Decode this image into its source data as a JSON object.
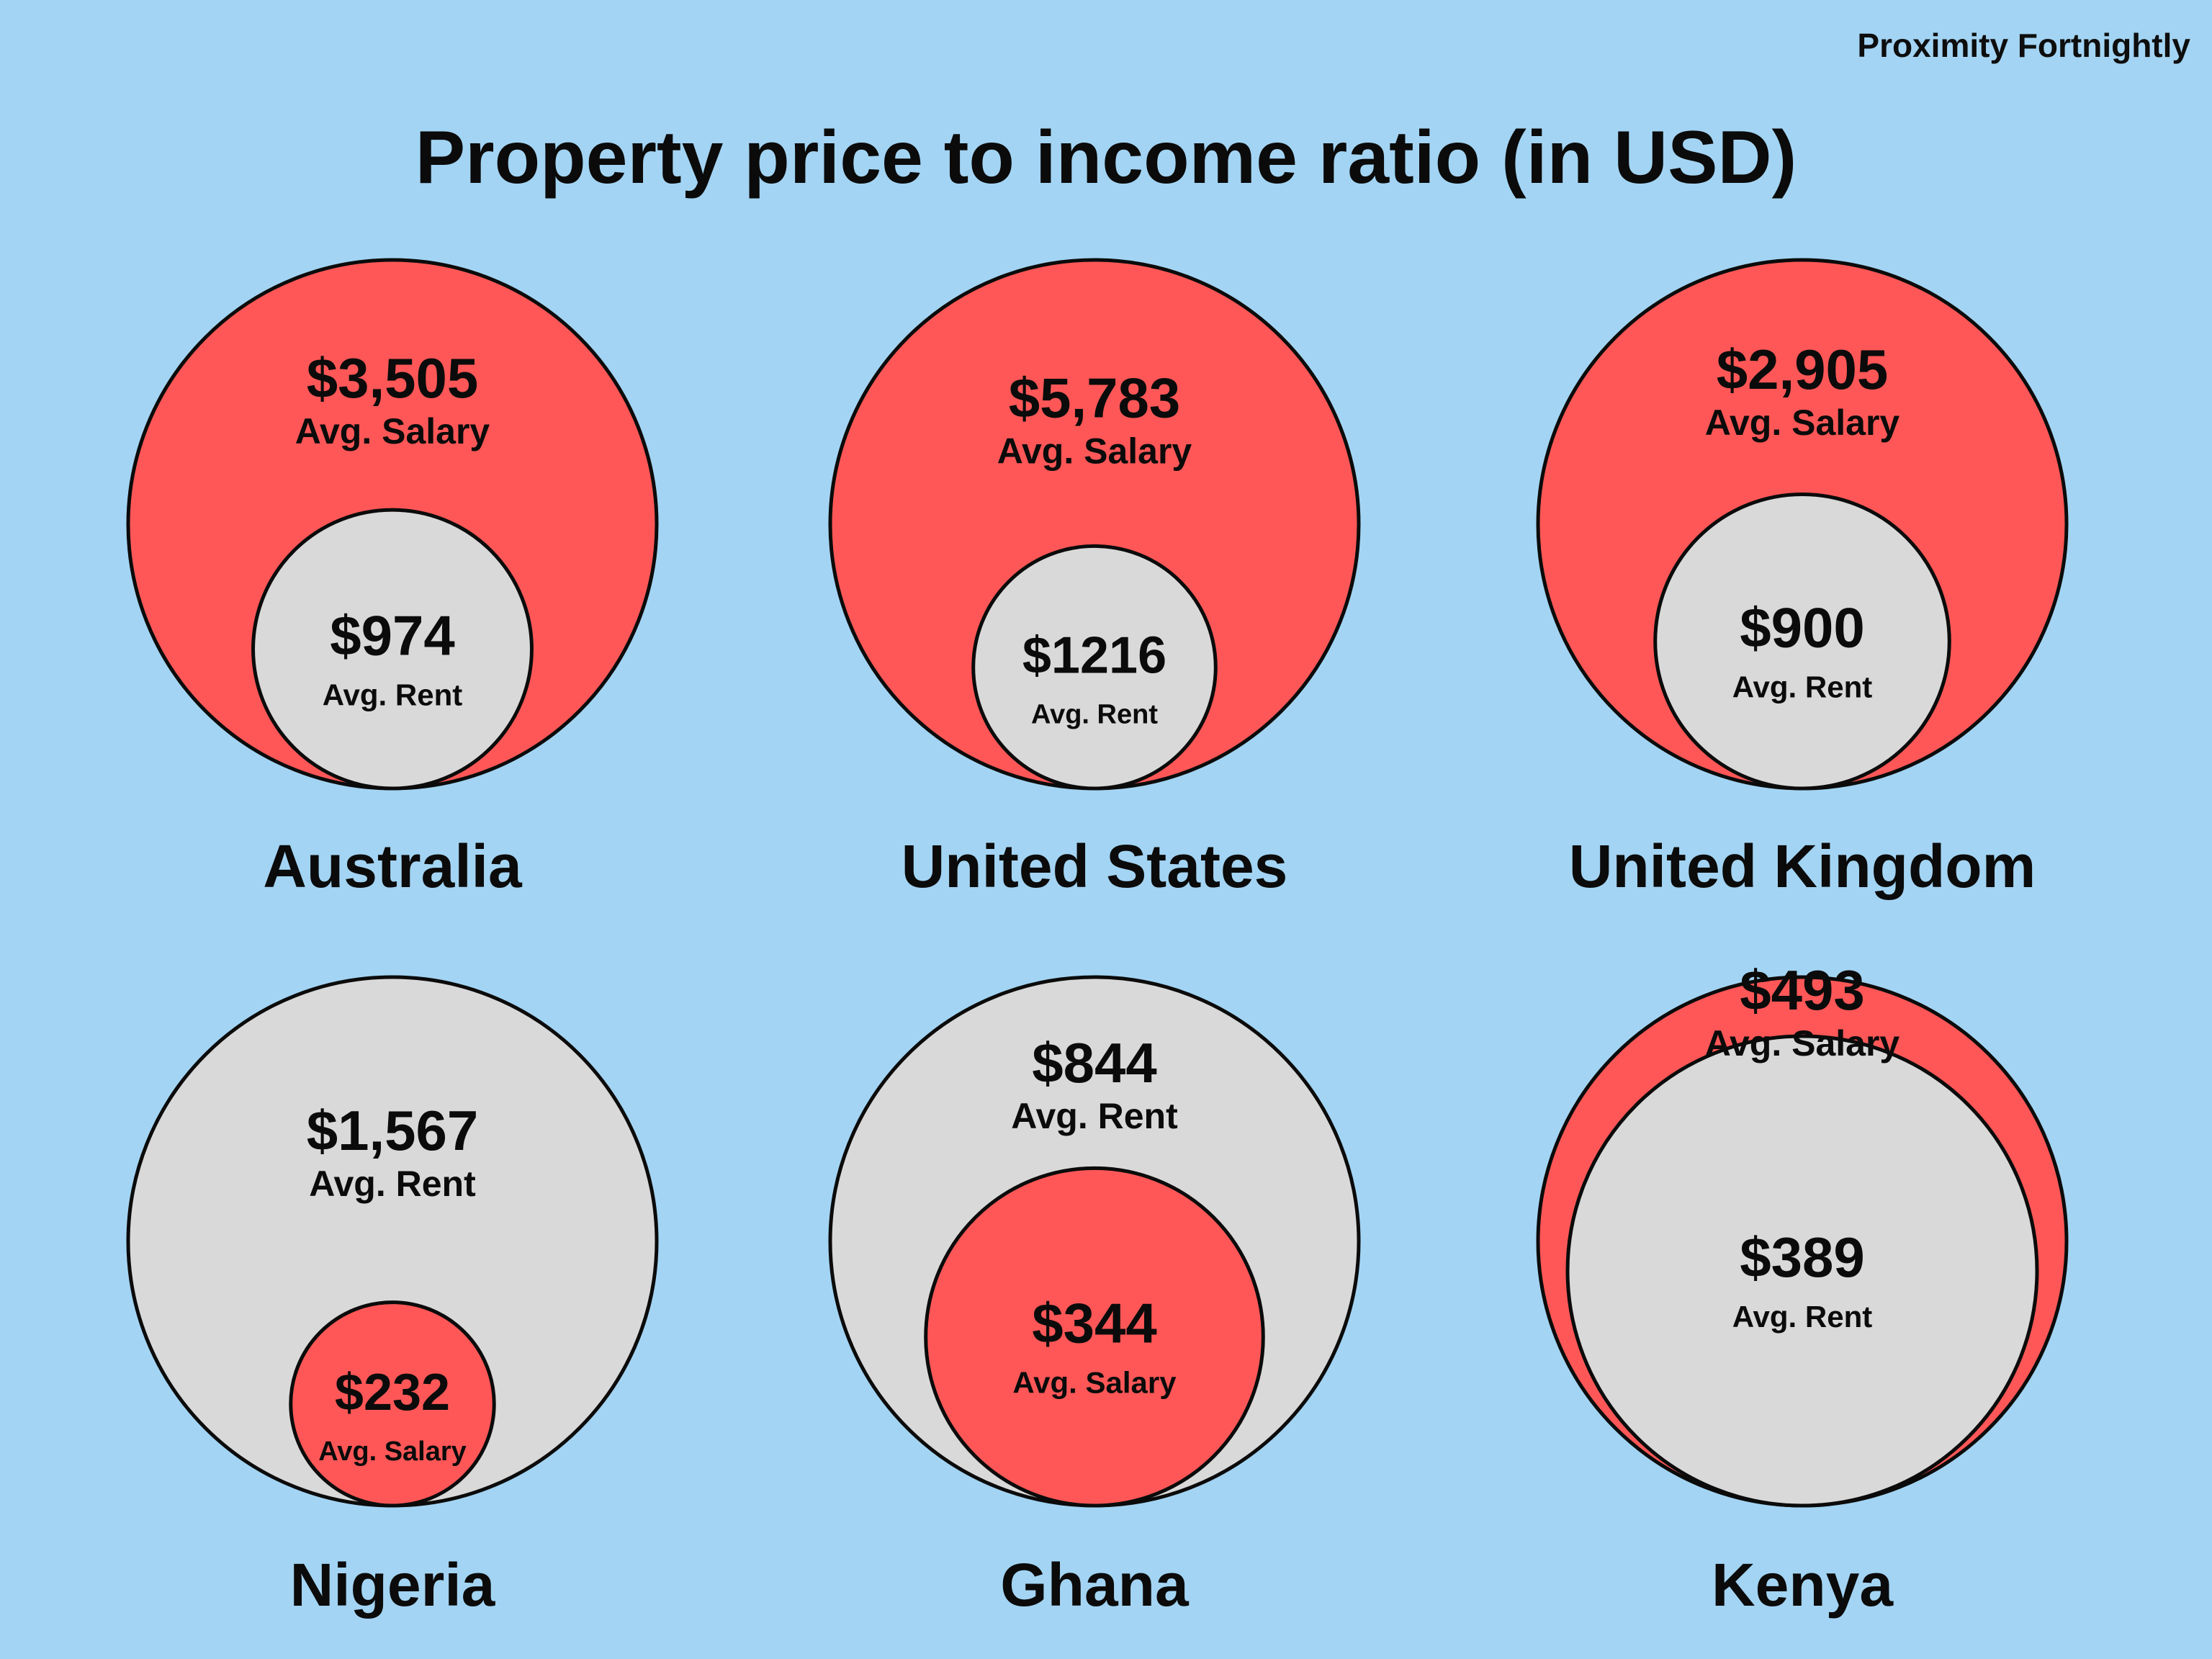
{
  "header": {
    "brand": "Proximity Fortnightly",
    "title": "Property price to income ratio (in USD)"
  },
  "colors": {
    "background": "#a3d4f3",
    "salary": "#ff5757",
    "rent": "#d9d9d9",
    "stroke": "#0b0b0b"
  },
  "chart_data": {
    "type": "nested-bubble",
    "title": "Property price to income ratio (in USD)",
    "series": [
      {
        "name": "Avg. Salary",
        "color": "#ff5757"
      },
      {
        "name": "Avg. Rent",
        "color": "#d9d9d9"
      }
    ],
    "countries": [
      {
        "country": "Australia",
        "salary": 3505,
        "rent": 974,
        "salary_label": "$3,505",
        "rent_label": "$974",
        "salary_text": "Avg. Salary",
        "rent_text": "Avg. Rent"
      },
      {
        "country": "United States",
        "salary": 5783,
        "rent": 1216,
        "salary_label": "$5,783",
        "rent_label": "$1216",
        "salary_text": "Avg. Salary",
        "rent_text": "Avg. Rent"
      },
      {
        "country": "United Kingdom",
        "salary": 2905,
        "rent": 900,
        "salary_label": "$2,905",
        "rent_label": "$900",
        "salary_text": "Avg. Salary",
        "rent_text": "Avg. Rent"
      },
      {
        "country": "Nigeria",
        "salary": 232,
        "rent": 1567,
        "salary_label": "$232",
        "rent_label": "$1,567",
        "salary_text": "Avg. Salary",
        "rent_text": "Avg. Rent"
      },
      {
        "country": "Ghana",
        "salary": 344,
        "rent": 844,
        "salary_label": "$344",
        "rent_label": "$844",
        "salary_text": "Avg. Salary",
        "rent_text": "Avg. Rent"
      },
      {
        "country": "Kenya",
        "salary": 493,
        "rent": 389,
        "salary_label": "$493",
        "rent_label": "$389",
        "salary_text": "Avg. Salary",
        "rent_text": "Avg. Rent"
      }
    ]
  }
}
